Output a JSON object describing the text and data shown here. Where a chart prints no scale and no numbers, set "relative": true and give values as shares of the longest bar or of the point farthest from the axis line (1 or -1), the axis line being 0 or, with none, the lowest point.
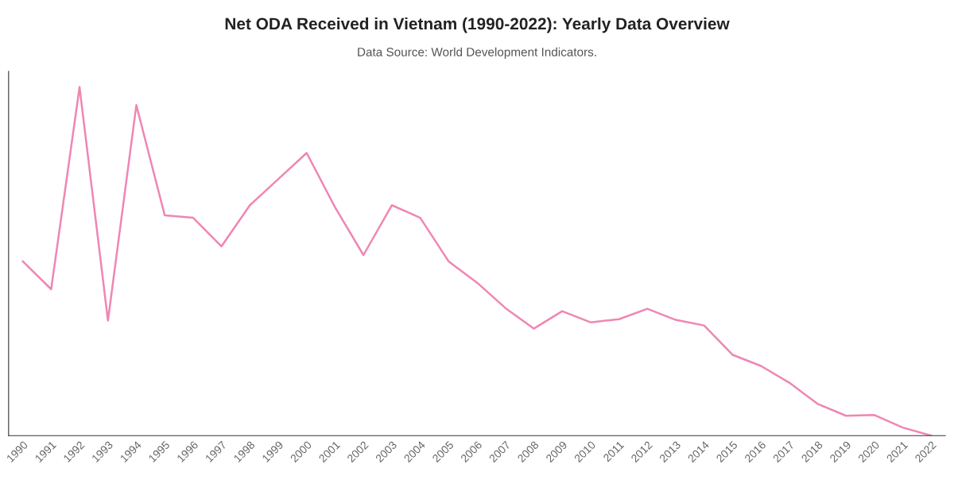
{
  "chart_data": {
    "type": "line",
    "title": "Net ODA Received in Vietnam (1990-2022): Yearly Data Overview",
    "subtitle": "Data Source: World Development Indicators.",
    "relative": true,
    "categories": [
      "1990",
      "1991",
      "1992",
      "1993",
      "1994",
      "1995",
      "1996",
      "1997",
      "1998",
      "1999",
      "2000",
      "2001",
      "2002",
      "2003",
      "2004",
      "2005",
      "2006",
      "2007",
      "2008",
      "2009",
      "2010",
      "2011",
      "2012",
      "2013",
      "2014",
      "2015",
      "2016",
      "2017",
      "2018",
      "2019",
      "2020",
      "2021",
      "2022"
    ],
    "series": [
      {
        "color": "#ef86b4",
        "values": [
          0.5,
          0.42,
          1,
          0.33,
          0.948,
          0.632,
          0.625,
          0.543,
          0.661,
          0.736,
          0.811,
          0.655,
          0.518,
          0.661,
          0.625,
          0.5,
          0.439,
          0.366,
          0.307,
          0.357,
          0.325,
          0.334,
          0.364,
          0.332,
          0.316,
          0.232,
          0.2,
          0.152,
          0.091,
          0.057,
          0.059,
          0.023,
          0
        ]
      }
    ],
    "marker": "none",
    "line_style": "solid"
  }
}
